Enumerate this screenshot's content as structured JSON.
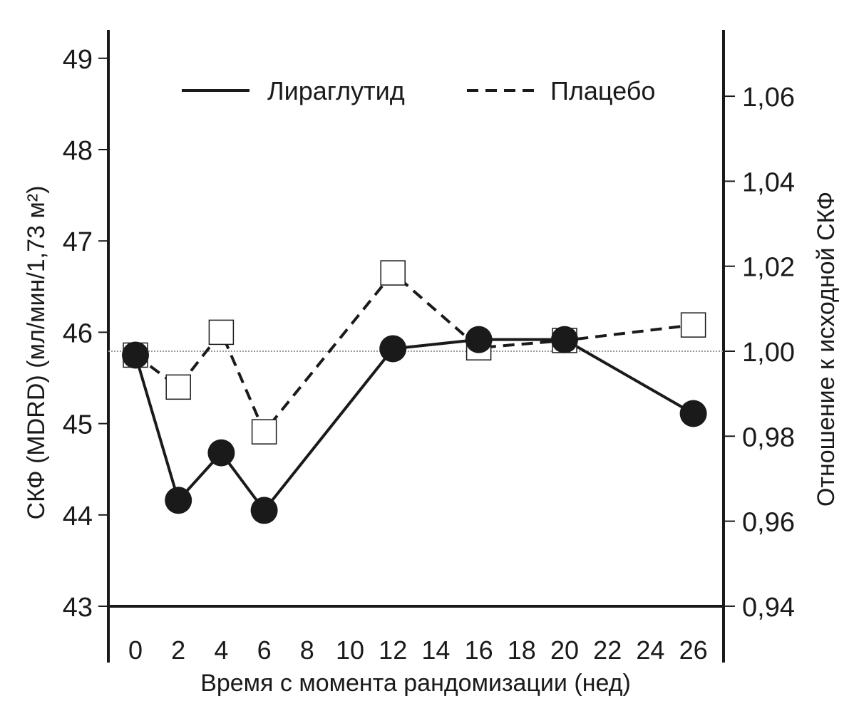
{
  "chart_data": {
    "type": "line",
    "title": "",
    "xlabel": "Время с момента рандомизации (нед)",
    "ylabel": "СКФ (MDRD) (мл/мин/1,73 м²)",
    "ylabel_right": "Отношение к исходной СКФ",
    "x_ticks": [
      "0",
      "2",
      "4",
      "6",
      "8",
      "10",
      "12",
      "14",
      "16",
      "18",
      "20",
      "22",
      "24",
      "26"
    ],
    "y_ticks": [
      "43",
      "44",
      "45",
      "46",
      "47",
      "48",
      "49"
    ],
    "y_right_ticks": [
      "0,94",
      "0,96",
      "0,98",
      "1,00",
      "1,02",
      "1,04",
      "1,06"
    ],
    "ylim": [
      43,
      49.3
    ],
    "ylim_right": [
      0.94,
      1.066
    ],
    "xlim": [
      0,
      26
    ],
    "reference_line": {
      "axis": "right",
      "value": 1.0,
      "style": "dotted"
    },
    "x": [
      0,
      2,
      4,
      6,
      12,
      16,
      20,
      26
    ],
    "series": [
      {
        "name": "Лираглутид",
        "style": "solid",
        "marker": "filled-circle",
        "values": [
          45.75,
          44.16,
          44.68,
          44.05,
          45.82,
          45.92,
          45.92,
          45.11
        ]
      },
      {
        "name": "Плацебо",
        "style": "dashed",
        "marker": "open-square",
        "values": [
          45.75,
          45.4,
          46.0,
          44.91,
          46.65,
          45.83,
          45.91,
          46.08
        ]
      }
    ],
    "legend_position": "top",
    "grid": false,
    "colors": {
      "line": "#1a1a1a",
      "reference": "#999999"
    }
  }
}
